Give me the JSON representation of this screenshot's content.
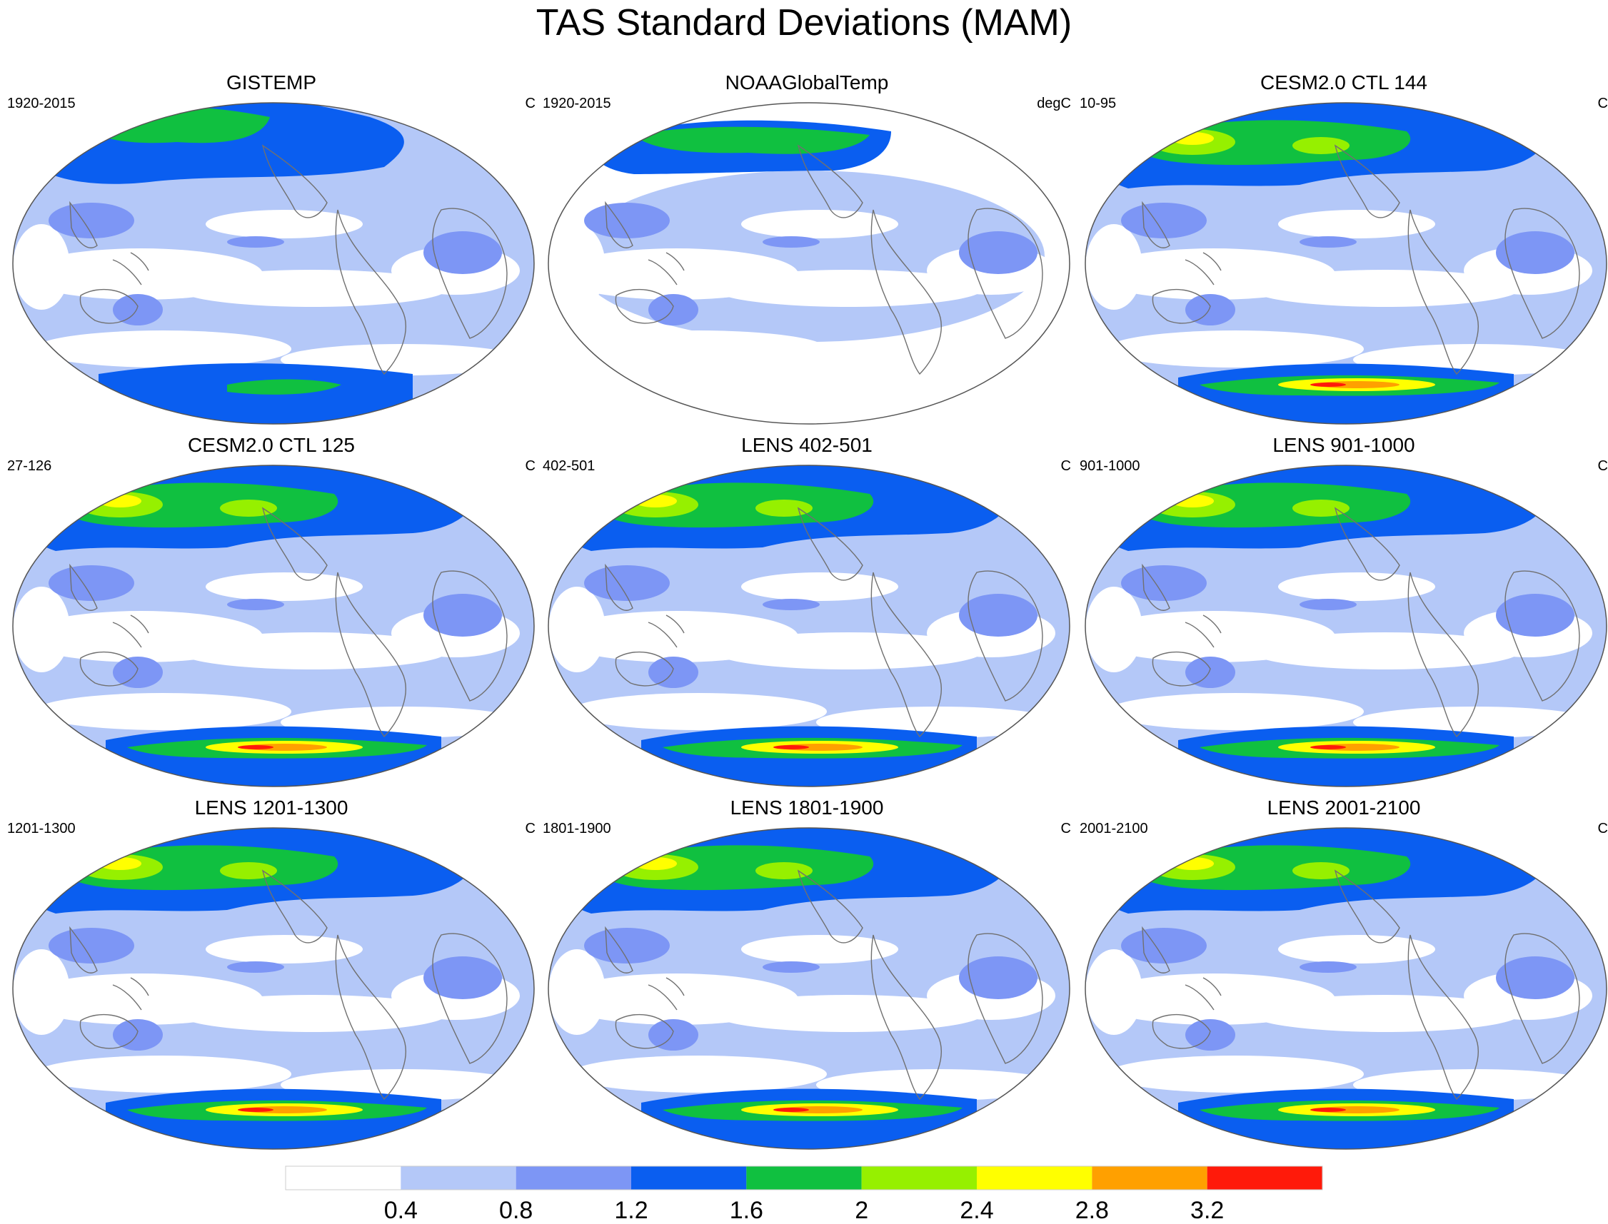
{
  "title": "TAS Standard Deviations (MAM)",
  "panels": [
    {
      "title": "GISTEMP",
      "range": "1920-2015",
      "units": "C",
      "style": "gistemp"
    },
    {
      "title": "NOAAGlobalTemp",
      "range": "1920-2015",
      "units": "degC",
      "style": "noaa"
    },
    {
      "title": "CESM2.0 CTL 144",
      "range": "10-95",
      "units": "C",
      "style": "model"
    },
    {
      "title": "CESM2.0 CTL 125",
      "range": "27-126",
      "units": "C",
      "style": "model"
    },
    {
      "title": "LENS 402-501",
      "range": "402-501",
      "units": "C",
      "style": "model"
    },
    {
      "title": "LENS 901-1000",
      "range": "901-1000",
      "units": "C",
      "style": "model"
    },
    {
      "title": "LENS 1201-1300",
      "range": "1201-1300",
      "units": "C",
      "style": "model"
    },
    {
      "title": "LENS 1801-1900",
      "range": "1801-1900",
      "units": "C",
      "style": "model"
    },
    {
      "title": "LENS 2001-2100",
      "range": "2001-2100",
      "units": "C",
      "style": "model"
    }
  ],
  "colorbar": {
    "labels": [
      "0.4",
      "0.8",
      "1.2",
      "1.6",
      "2",
      "2.4",
      "2.8",
      "3.2"
    ],
    "colors": [
      "#ffffff",
      "#b4c8f8",
      "#7d96f5",
      "#0a5ef0",
      "#10c040",
      "#96f000",
      "#ffff00",
      "#ffa000",
      "#ff1a0a"
    ]
  },
  "map_colors": {
    "background": "#b4c8f8",
    "white": "#ffffff",
    "mid": "#7d96f5",
    "blue": "#0a5ef0",
    "green": "#10c040",
    "lime": "#96f000",
    "yellow": "#ffff00",
    "orange": "#ffa000",
    "red": "#ff1a0a",
    "coast": "#707070"
  }
}
